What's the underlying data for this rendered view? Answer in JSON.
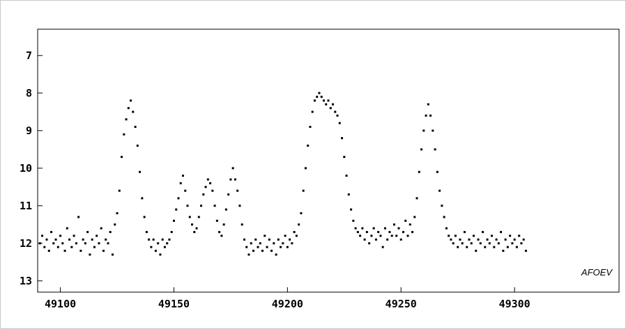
{
  "chart_data": {
    "type": "scatter",
    "title": "",
    "xlabel": "",
    "ylabel": "",
    "xlim": [
      49090,
      49346
    ],
    "ylim": [
      13.3,
      6.3
    ],
    "y_inverted": true,
    "grid": false,
    "legend": "none",
    "annotation": "AFOEV",
    "x_ticks": [
      49100,
      49150,
      49200,
      49250,
      49300
    ],
    "y_ticks": [
      7,
      8,
      9,
      10,
      11,
      12,
      13
    ],
    "series": [
      {
        "marker_color": "#000000",
        "points": [
          [
            49091,
            12.0
          ],
          [
            49092,
            11.8
          ],
          [
            49093,
            12.1
          ],
          [
            49094,
            11.9
          ],
          [
            49095,
            12.2
          ],
          [
            49096,
            11.7
          ],
          [
            49097,
            12.0
          ],
          [
            49098,
            11.9
          ],
          [
            49099,
            12.1
          ],
          [
            49100,
            11.8
          ],
          [
            49101,
            12.0
          ],
          [
            49102,
            12.2
          ],
          [
            49103,
            11.6
          ],
          [
            49104,
            11.9
          ],
          [
            49105,
            12.1
          ],
          [
            49106,
            11.8
          ],
          [
            49107,
            12.0
          ],
          [
            49108,
            11.3
          ],
          [
            49109,
            12.2
          ],
          [
            49110,
            11.9
          ],
          [
            49111,
            12.0
          ],
          [
            49112,
            11.7
          ],
          [
            49113,
            12.3
          ],
          [
            49114,
            11.9
          ],
          [
            49115,
            12.1
          ],
          [
            49116,
            11.8
          ],
          [
            49117,
            12.0
          ],
          [
            49118,
            11.6
          ],
          [
            49119,
            12.2
          ],
          [
            49120,
            11.9
          ],
          [
            49121,
            12.0
          ],
          [
            49122,
            11.7
          ],
          [
            49123,
            12.3
          ],
          [
            49124,
            11.5
          ],
          [
            49125,
            11.2
          ],
          [
            49126,
            10.6
          ],
          [
            49127,
            9.7
          ],
          [
            49128,
            9.1
          ],
          [
            49129,
            8.7
          ],
          [
            49130,
            8.4
          ],
          [
            49131,
            8.2
          ],
          [
            49132,
            8.5
          ],
          [
            49133,
            8.9
          ],
          [
            49134,
            9.4
          ],
          [
            49135,
            10.1
          ],
          [
            49136,
            10.8
          ],
          [
            49137,
            11.3
          ],
          [
            49138,
            11.7
          ],
          [
            49139,
            11.9
          ],
          [
            49140,
            12.1
          ],
          [
            49141,
            11.9
          ],
          [
            49142,
            12.2
          ],
          [
            49143,
            12.0
          ],
          [
            49144,
            12.3
          ],
          [
            49145,
            11.9
          ],
          [
            49146,
            12.1
          ],
          [
            49147,
            12.0
          ],
          [
            49148,
            11.9
          ],
          [
            49149,
            11.7
          ],
          [
            49150,
            11.4
          ],
          [
            49151,
            11.1
          ],
          [
            49152,
            10.8
          ],
          [
            49153,
            10.4
          ],
          [
            49154,
            10.2
          ],
          [
            49155,
            10.6
          ],
          [
            49156,
            11.0
          ],
          [
            49157,
            11.3
          ],
          [
            49158,
            11.5
          ],
          [
            49159,
            11.7
          ],
          [
            49160,
            11.6
          ],
          [
            49161,
            11.3
          ],
          [
            49162,
            11.0
          ],
          [
            49163,
            10.7
          ],
          [
            49164,
            10.5
          ],
          [
            49165,
            10.3
          ],
          [
            49166,
            10.4
          ],
          [
            49167,
            10.6
          ],
          [
            49168,
            11.0
          ],
          [
            49169,
            11.4
          ],
          [
            49170,
            11.7
          ],
          [
            49171,
            11.8
          ],
          [
            49172,
            11.5
          ],
          [
            49173,
            11.1
          ],
          [
            49174,
            10.7
          ],
          [
            49175,
            10.3
          ],
          [
            49176,
            10.0
          ],
          [
            49177,
            10.3
          ],
          [
            49178,
            10.6
          ],
          [
            49179,
            11.0
          ],
          [
            49180,
            11.5
          ],
          [
            49181,
            11.9
          ],
          [
            49182,
            12.1
          ],
          [
            49183,
            12.3
          ],
          [
            49184,
            12.0
          ],
          [
            49185,
            12.2
          ],
          [
            49186,
            11.9
          ],
          [
            49187,
            12.1
          ],
          [
            49188,
            12.0
          ],
          [
            49189,
            12.2
          ],
          [
            49190,
            11.8
          ],
          [
            49191,
            12.1
          ],
          [
            49192,
            11.9
          ],
          [
            49193,
            12.2
          ],
          [
            49194,
            12.0
          ],
          [
            49195,
            12.3
          ],
          [
            49196,
            11.9
          ],
          [
            49197,
            12.1
          ],
          [
            49198,
            12.0
          ],
          [
            49199,
            11.8
          ],
          [
            49200,
            12.1
          ],
          [
            49201,
            11.9
          ],
          [
            49202,
            12.0
          ],
          [
            49203,
            11.7
          ],
          [
            49204,
            11.8
          ],
          [
            49205,
            11.5
          ],
          [
            49206,
            11.2
          ],
          [
            49207,
            10.6
          ],
          [
            49208,
            10.0
          ],
          [
            49209,
            9.4
          ],
          [
            49210,
            8.9
          ],
          [
            49211,
            8.5
          ],
          [
            49212,
            8.2
          ],
          [
            49213,
            8.1
          ],
          [
            49214,
            8.0
          ],
          [
            49215,
            8.1
          ],
          [
            49216,
            8.2
          ],
          [
            49217,
            8.3
          ],
          [
            49218,
            8.2
          ],
          [
            49219,
            8.4
          ],
          [
            49220,
            8.3
          ],
          [
            49221,
            8.5
          ],
          [
            49222,
            8.6
          ],
          [
            49223,
            8.8
          ],
          [
            49224,
            9.2
          ],
          [
            49225,
            9.7
          ],
          [
            49226,
            10.2
          ],
          [
            49227,
            10.7
          ],
          [
            49228,
            11.1
          ],
          [
            49229,
            11.4
          ],
          [
            49230,
            11.6
          ],
          [
            49231,
            11.7
          ],
          [
            49232,
            11.8
          ],
          [
            49233,
            11.6
          ],
          [
            49234,
            11.9
          ],
          [
            49235,
            11.7
          ],
          [
            49236,
            12.0
          ],
          [
            49237,
            11.8
          ],
          [
            49238,
            11.6
          ],
          [
            49239,
            11.9
          ],
          [
            49240,
            11.7
          ],
          [
            49241,
            11.8
          ],
          [
            49242,
            12.1
          ],
          [
            49243,
            11.6
          ],
          [
            49244,
            11.9
          ],
          [
            49245,
            11.7
          ],
          [
            49246,
            11.8
          ],
          [
            49247,
            11.5
          ],
          [
            49248,
            11.8
          ],
          [
            49249,
            11.6
          ],
          [
            49250,
            11.9
          ],
          [
            49251,
            11.7
          ],
          [
            49252,
            11.4
          ],
          [
            49253,
            11.8
          ],
          [
            49254,
            11.5
          ],
          [
            49255,
            11.7
          ],
          [
            49256,
            11.3
          ],
          [
            49257,
            10.8
          ],
          [
            49258,
            10.1
          ],
          [
            49259,
            9.5
          ],
          [
            49260,
            9.0
          ],
          [
            49261,
            8.6
          ],
          [
            49262,
            8.3
          ],
          [
            49263,
            8.6
          ],
          [
            49264,
            9.0
          ],
          [
            49265,
            9.5
          ],
          [
            49266,
            10.1
          ],
          [
            49267,
            10.6
          ],
          [
            49268,
            11.0
          ],
          [
            49269,
            11.3
          ],
          [
            49270,
            11.6
          ],
          [
            49271,
            11.8
          ],
          [
            49272,
            11.9
          ],
          [
            49273,
            12.0
          ],
          [
            49274,
            11.8
          ],
          [
            49275,
            12.1
          ],
          [
            49276,
            11.9
          ],
          [
            49277,
            12.0
          ],
          [
            49278,
            11.7
          ],
          [
            49279,
            12.1
          ],
          [
            49280,
            11.9
          ],
          [
            49281,
            12.0
          ],
          [
            49282,
            11.8
          ],
          [
            49283,
            12.2
          ],
          [
            49284,
            11.9
          ],
          [
            49285,
            12.0
          ],
          [
            49286,
            11.7
          ],
          [
            49287,
            12.1
          ],
          [
            49288,
            11.9
          ],
          [
            49289,
            12.0
          ],
          [
            49290,
            11.8
          ],
          [
            49291,
            12.1
          ],
          [
            49292,
            11.9
          ],
          [
            49293,
            12.0
          ],
          [
            49294,
            11.7
          ],
          [
            49295,
            12.2
          ],
          [
            49296,
            11.9
          ],
          [
            49297,
            12.1
          ],
          [
            49298,
            11.8
          ],
          [
            49299,
            12.0
          ],
          [
            49300,
            11.9
          ],
          [
            49301,
            12.1
          ],
          [
            49302,
            11.8
          ],
          [
            49303,
            12.0
          ],
          [
            49304,
            11.9
          ],
          [
            49305,
            12.2
          ]
        ]
      }
    ]
  }
}
